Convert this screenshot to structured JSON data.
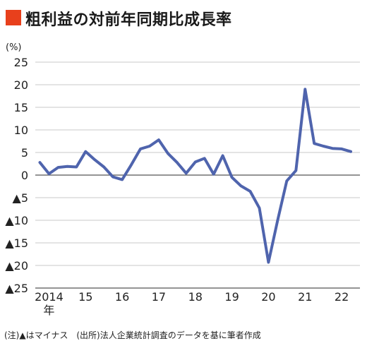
{
  "title": "粗利益の対前年同期比成長率",
  "unit_label": "(%)",
  "footnote": "(注)▲はマイナス　(出所)法人企業統計調査のデータを基に筆者作成",
  "colors": {
    "title_mark": "#e8401c",
    "line": "#4f64ad",
    "grid": "#c8c8c8",
    "axis": "#555555"
  },
  "chart_data": {
    "type": "line",
    "title": "粗利益の対前年同期比成長率",
    "ylabel": "(%)",
    "xlabel": "",
    "ylim": [
      -25,
      25
    ],
    "y_ticks": [
      25,
      20,
      15,
      10,
      5,
      0,
      -5,
      -10,
      -15,
      -20,
      -25
    ],
    "y_tick_labels": [
      "25",
      "20",
      "15",
      "10",
      "5",
      "0",
      "▲5",
      "▲10",
      "▲15",
      "▲20",
      "▲25"
    ],
    "x_ticks": [
      {
        "label": "2014",
        "sublabel": "年",
        "index": 1
      },
      {
        "label": "15",
        "index": 5
      },
      {
        "label": "16",
        "index": 9
      },
      {
        "label": "17",
        "index": 13
      },
      {
        "label": "18",
        "index": 17
      },
      {
        "label": "19",
        "index": 21
      },
      {
        "label": "20",
        "index": 25
      },
      {
        "label": "21",
        "index": 29
      },
      {
        "label": "22",
        "index": 33
      }
    ],
    "x_range": [
      -0.5,
      35
    ],
    "grid": "horizontal",
    "series": [
      {
        "values": [
          2.8,
          0.3,
          1.7,
          1.9,
          1.8,
          5.2,
          3.4,
          1.8,
          -0.4,
          -1.0,
          2.3,
          5.8,
          6.4,
          7.8,
          4.8,
          2.8,
          0.4,
          2.9,
          3.7,
          0.2,
          4.3,
          -0.5,
          -2.4,
          -3.6,
          -7.3,
          -19.3,
          -10.0,
          -1.3,
          1.0,
          19.0,
          7.0,
          6.4,
          5.9,
          5.8,
          5.2
        ]
      }
    ]
  }
}
